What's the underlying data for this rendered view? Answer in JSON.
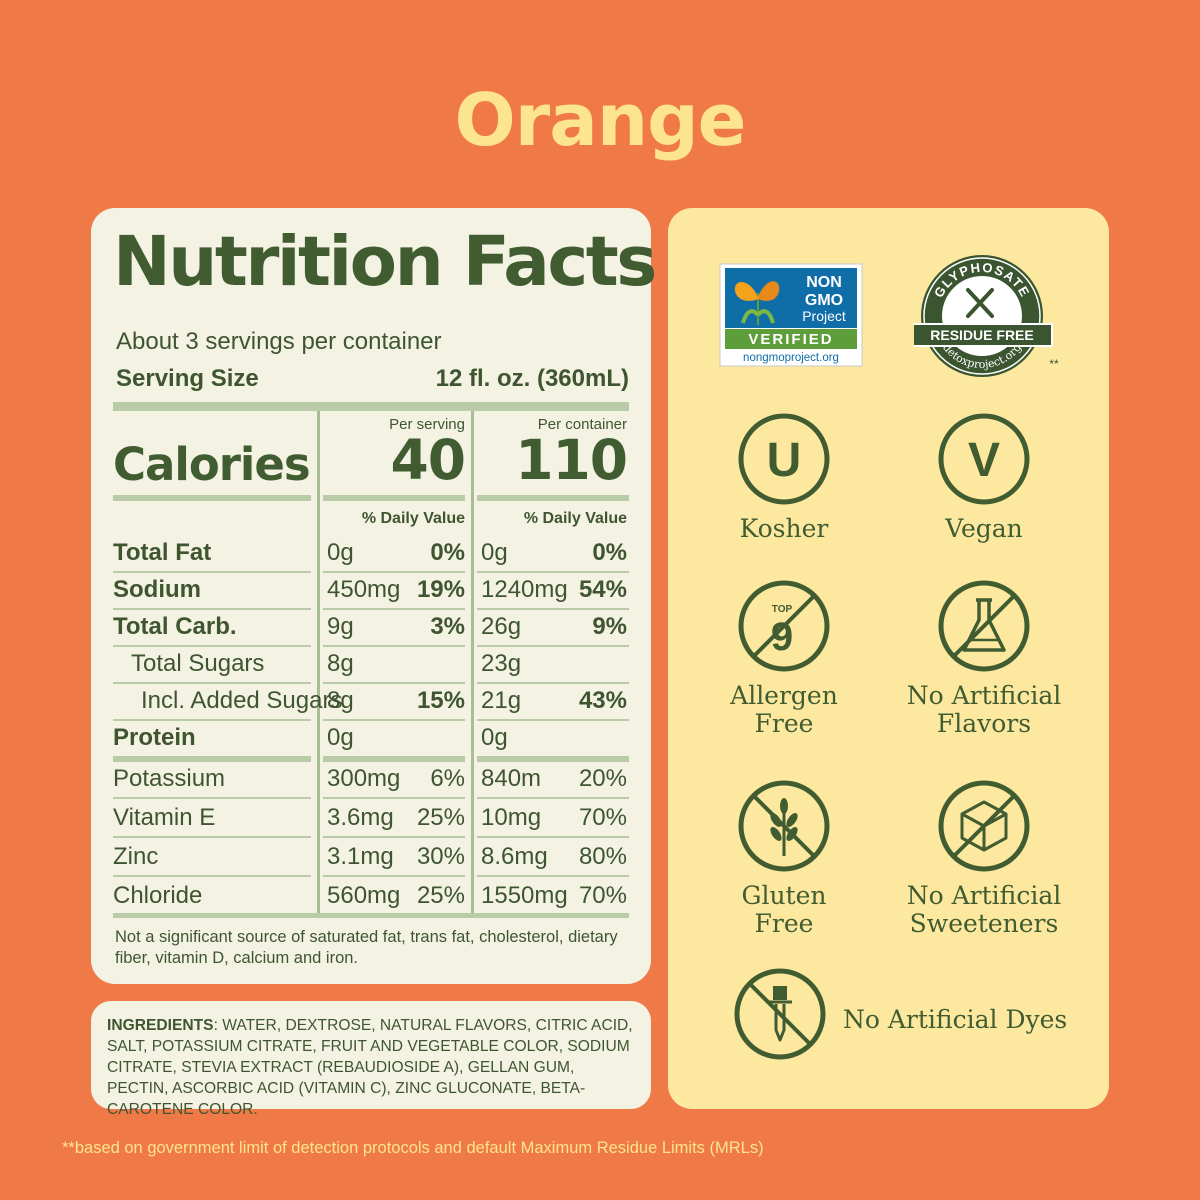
{
  "flavor": "Orange",
  "nutrition": {
    "title": "Nutrition Facts",
    "servings_per_container": "About 3 servings per container",
    "serving_size_label": "Serving Size",
    "serving_size_value": "12 fl. oz. (360mL)",
    "calories_label": "Calories",
    "per_serving_label": "Per serving",
    "per_container_label": "Per container",
    "calories_per_serving": "40",
    "calories_per_container": "110",
    "dv_label": "% Daily Value",
    "rows": [
      {
        "name": "Total Fat",
        "amt": "0g",
        "pct": "0%",
        "amt2": "0g",
        "pct2": "0%"
      },
      {
        "name": "Sodium",
        "amt": "450mg",
        "pct": "19%",
        "amt2": "1240mg",
        "pct2": "54%"
      },
      {
        "name": "Total Carb.",
        "amt": "9g",
        "pct": "3%",
        "amt2": "26g",
        "pct2": "9%"
      },
      {
        "name": "Total Sugars",
        "amt": "8g",
        "pct": "",
        "amt2": "23g",
        "pct2": ""
      },
      {
        "name": "Incl. Added Sugars",
        "amt": "8g",
        "pct": "15%",
        "amt2": "21g",
        "pct2": "43%"
      },
      {
        "name": "Protein",
        "amt": "0g",
        "pct": "",
        "amt2": "0g",
        "pct2": ""
      },
      {
        "name": "Potassium",
        "amt": "300mg",
        "pct": "6%",
        "amt2": "840m",
        "pct2": "20%"
      },
      {
        "name": "Vitamin E",
        "amt": "3.6mg",
        "pct": "25%",
        "amt2": "10mg",
        "pct2": "70%"
      },
      {
        "name": "Zinc",
        "amt": "3.1mg",
        "pct": "30%",
        "amt2": "8.6mg",
        "pct2": "80%"
      },
      {
        "name": "Chloride",
        "amt": "560mg",
        "pct": "25%",
        "amt2": "1550mg",
        "pct2": "70%"
      }
    ],
    "footnote": "Not a significant source of saturated fat, trans fat, cholesterol, dietary fiber, vitamin D, calcium and iron."
  },
  "ingredients": {
    "label": "INGREDIENTS",
    "text": ": WATER, DEXTROSE, NATURAL FLAVORS, CITRIC ACID, SALT, POTASSIUM CITRATE, FRUIT AND VEGETABLE COLOR, SODIUM CITRATE, STEVIA EXTRACT (REBAUDIOSIDE A), GELLAN GUM, PECTIN, ASCORBIC ACID (VITAMIN C), ZINC GLUCONATE, BETA-CAROTENE COLOR."
  },
  "certifications": {
    "nongmo": {
      "line1": "NON",
      "line2": "GMO",
      "line3": "Project",
      "verified": "VERIFIED",
      "url": "nongmoproject.org"
    },
    "glyphosate": {
      "top": "GLYPHOSATE",
      "band": "RESIDUE FREE",
      "bottom": "detoxproject.org",
      "mark": "**"
    },
    "kosher": {
      "symbol": "U",
      "label": "Kosher"
    },
    "vegan": {
      "symbol": "V",
      "label": "Vegan"
    },
    "allergen": {
      "top": "TOP",
      "num": "9",
      "label_1": "Allergen",
      "label_2": "Free"
    },
    "flavors": {
      "label_1": "No Artificial",
      "label_2": "Flavors"
    },
    "gluten": {
      "label_1": "Gluten",
      "label_2": "Free"
    },
    "sweeteners": {
      "label_1": "No Artificial",
      "label_2": "Sweeteners"
    },
    "dyes": {
      "label": "No Artificial Dyes"
    }
  },
  "footer_note": "**based on government limit of detection protocols and default Maximum Residue Limits (MRLs)",
  "colors": {
    "background": "#F07A47",
    "title": "#FDE48E",
    "panel": "#F3F2E3",
    "cert_panel": "#FDE8A0",
    "ink": "#415C31"
  }
}
